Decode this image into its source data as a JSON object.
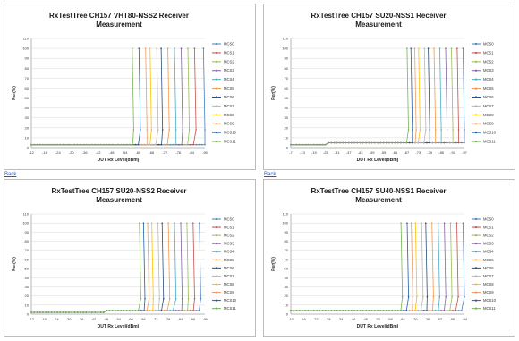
{
  "links": {
    "back_label_1": "Back",
    "back_label_2": "Back"
  },
  "colors": {
    "MCS0": "#4a7ebb",
    "MCS1": "#c0504d",
    "MCS2": "#9bbb59",
    "MCS3": "#8064a2",
    "MCS4": "#4bacc6",
    "MCS5": "#f79646",
    "MCS6": "#2c4d75",
    "MCS7": "#b7b7b7",
    "MCS8": "#ffc000",
    "MCS9": "#ee9b6b",
    "MCS10": "#1f5fa6",
    "MCS11": "#77b255"
  },
  "chart_data": [
    {
      "type": "line",
      "title_line1": "RxTestTree CH157 VHT80-NSS2 Receiver",
      "title_line2": "Measurement",
      "xlabel": "DUT Rx Level(dBm)",
      "ylabel": "Per(%)",
      "ylim": [
        0,
        110
      ],
      "yticks": [
        "0",
        "10",
        "20",
        "30",
        "40",
        "50",
        "60",
        "70",
        "80",
        "90",
        "100",
        "110"
      ],
      "xticks": [
        "-12",
        "-18",
        "-24",
        "-30",
        "-36",
        "-42",
        "-48",
        "-54",
        "-60",
        "-66",
        "-72",
        "-78",
        "-84",
        "-90"
      ],
      "xlim": [
        -12,
        -90
      ],
      "legend": [
        "MCS0",
        "MCS1",
        "MCS2",
        "MCS3",
        "MCS4",
        "MCS5",
        "MCS6",
        "MCS7",
        "MCS8",
        "MCS9",
        "MCS10",
        "MCS11"
      ],
      "legend_position": "right",
      "waterfalls": [
        -90,
        -86,
        -83,
        -80,
        -77,
        -74,
        -71,
        -69,
        -66,
        -64,
        -61,
        -58
      ],
      "floor": 3
    },
    {
      "type": "line",
      "title_line1": "RxTestTree CH157 SU20-NSS1 Receiver",
      "title_line2": "Measurement",
      "xlabel": "DUT Rx Level(dBm)",
      "ylabel": "Per(%)",
      "ylim": [
        0,
        110
      ],
      "yticks": [
        "0",
        "10",
        "20",
        "30",
        "40",
        "50",
        "60",
        "70",
        "80",
        "90",
        "100",
        "110"
      ],
      "xticks": [
        "-7",
        "-13",
        "-19",
        "-25",
        "-31",
        "-37",
        "-43",
        "-49",
        "-55",
        "-61",
        "-67",
        "-73",
        "-79",
        "-85",
        "-91",
        "-97"
      ],
      "xlim": [
        -7,
        -97
      ],
      "legend": [
        "MCS0",
        "MCS1",
        "MCS2",
        "MCS3",
        "MCS4",
        "MCS5",
        "MCS6",
        "MCS7",
        "MCS8",
        "MCS9",
        "MCS10",
        "MCS11"
      ],
      "legend_position": "right",
      "waterfalls": [
        -97,
        -94,
        -91,
        -88,
        -85,
        -82,
        -79,
        -77,
        -74,
        -72,
        -70,
        -68
      ],
      "floor": 3,
      "step": [
        -26,
        5
      ]
    },
    {
      "type": "line",
      "title_line1": "RxTestTree CH157 SU20-NSS2 Receiver",
      "title_line2": "Measurement",
      "xlabel": "DUT Rx Level(dBm)",
      "ylabel": "Per(%)",
      "ylim": [
        0,
        110
      ],
      "yticks": [
        "0",
        "10",
        "20",
        "30",
        "40",
        "50",
        "60",
        "70",
        "80",
        "90",
        "100",
        "110"
      ],
      "xticks": [
        "-12",
        "-18",
        "-24",
        "-30",
        "-36",
        "-42",
        "-48",
        "-54",
        "-60",
        "-66",
        "-72",
        "-78",
        "-84",
        "-90",
        "-96"
      ],
      "xlim": [
        -12,
        -96
      ],
      "legend": [
        "MCS0",
        "MCS1",
        "MCS2",
        "MCS3",
        "MCS4",
        "MCS5",
        "MCS6",
        "MCS7",
        "MCS8",
        "MCS9",
        "MCS10",
        "MCS11"
      ],
      "legend_position": "right",
      "waterfalls": [
        -94,
        -91,
        -88,
        -85,
        -82,
        -79,
        -76,
        -74,
        -71,
        -69,
        -67,
        -65
      ],
      "floor": 2,
      "step": [
        -48,
        4
      ]
    },
    {
      "type": "line",
      "title_line1": "RxTestTree CH157 SU40-NSS1 Receiver",
      "title_line2": "Measurement",
      "xlabel": "DUT Rx Level(dBm)",
      "ylabel": "Per(%)",
      "ylim": [
        0,
        110
      ],
      "yticks": [
        "0",
        "10",
        "20",
        "30",
        "40",
        "50",
        "60",
        "70",
        "80",
        "90",
        "100",
        "110"
      ],
      "xticks": [
        "-10",
        "-16",
        "-22",
        "-28",
        "-34",
        "-40",
        "-46",
        "-52",
        "-58",
        "-64",
        "-70",
        "-76",
        "-82",
        "-88",
        "-94"
      ],
      "xlim": [
        -10,
        -94
      ],
      "legend": [
        "MCS0",
        "MCS1",
        "MCS2",
        "MCS3",
        "MCS4",
        "MCS5",
        "MCS6",
        "MCS7",
        "MCS8",
        "MCS9",
        "MCS10",
        "MCS11"
      ],
      "legend_position": "right",
      "waterfalls": [
        -94,
        -91,
        -88,
        -85,
        -82,
        -79,
        -76,
        -74,
        -71,
        -69,
        -67,
        -64
      ],
      "floor": 4
    }
  ]
}
